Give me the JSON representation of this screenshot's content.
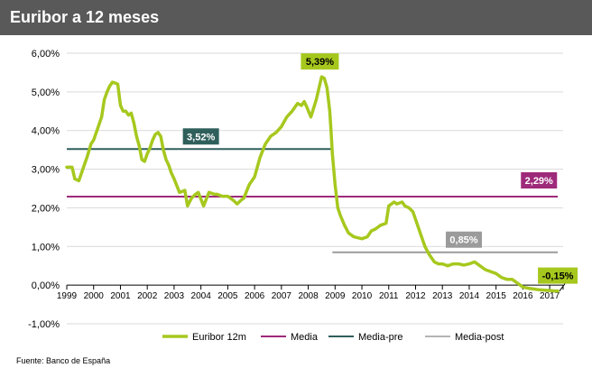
{
  "header": {
    "title": "Euribor a 12 meses"
  },
  "source": "Fuente: Banco de España",
  "colors": {
    "euribor": "#a6c81e",
    "media": "#9e2a7a",
    "media_pre": "#2f5f5b",
    "media_post": "#9b9b9b",
    "header_bg": "#595959"
  },
  "chart_data": {
    "type": "line",
    "title": "Euribor a 12 meses",
    "ylim": [
      -1.0,
      6.0
    ],
    "xlim": [
      1999.0,
      2017.5
    ],
    "y_ticks": [
      "6,00%",
      "5,00%",
      "4,00%",
      "3,00%",
      "2,00%",
      "1,00%",
      "0,00%",
      "-1,00%"
    ],
    "x_ticks": [
      "1999",
      "2000",
      "2001",
      "2002",
      "2003",
      "2004",
      "2005",
      "2006",
      "2007",
      "2008",
      "2009",
      "2010",
      "2011",
      "2012",
      "2013",
      "2014",
      "2015",
      "2016",
      "2017"
    ],
    "grid": "horizontal",
    "legend_position": "bottom",
    "legend": [
      "Euribor 12m",
      "Media",
      "Media-pre",
      "Media-post"
    ],
    "series": [
      {
        "name": "Euribor 12m",
        "x": [
          1999.0,
          1999.1,
          1999.2,
          1999.3,
          1999.45,
          1999.6,
          1999.75,
          1999.9,
          2000.0,
          2000.15,
          2000.3,
          2000.4,
          2000.5,
          2000.6,
          2000.7,
          2000.8,
          2000.9,
          2001.0,
          2001.1,
          2001.2,
          2001.3,
          2001.4,
          2001.5,
          2001.6,
          2001.7,
          2001.8,
          2001.9,
          2002.0,
          2002.1,
          2002.2,
          2002.3,
          2002.4,
          2002.5,
          2002.6,
          2002.7,
          2002.8,
          2002.9,
          2003.0,
          2003.2,
          2003.4,
          2003.5,
          2003.65,
          2003.8,
          2003.9,
          2004.1,
          2004.3,
          2004.5,
          2004.6,
          2004.8,
          2005.0,
          2005.2,
          2005.35,
          2005.5,
          2005.6,
          2005.8,
          2006.0,
          2006.2,
          2006.4,
          2006.6,
          2006.8,
          2007.0,
          2007.2,
          2007.4,
          2007.6,
          2007.75,
          2007.85,
          2007.95,
          2008.1,
          2008.3,
          2008.5,
          2008.6,
          2008.7,
          2008.8,
          2008.85,
          2008.9,
          2009.0,
          2009.1,
          2009.2,
          2009.35,
          2009.5,
          2009.7,
          2010.0,
          2010.2,
          2010.35,
          2010.5,
          2010.7,
          2010.9,
          2011.0,
          2011.2,
          2011.3,
          2011.5,
          2011.6,
          2011.75,
          2011.9,
          2012.0,
          2012.2,
          2012.35,
          2012.5,
          2012.7,
          2012.85,
          2013.0,
          2013.2,
          2013.4,
          2013.6,
          2013.8,
          2014.0,
          2014.2,
          2014.4,
          2014.6,
          2014.8,
          2015.0,
          2015.2,
          2015.4,
          2015.6,
          2015.8,
          2016.0,
          2016.2,
          2016.4,
          2016.6,
          2016.8,
          2017.0,
          2017.2,
          2017.3
        ],
        "y": [
          3.05,
          3.05,
          3.05,
          2.75,
          2.7,
          3.0,
          3.3,
          3.65,
          3.75,
          4.05,
          4.35,
          4.8,
          5.0,
          5.15,
          5.25,
          5.23,
          5.2,
          4.65,
          4.5,
          4.5,
          4.4,
          4.45,
          4.2,
          3.85,
          3.6,
          3.25,
          3.2,
          3.4,
          3.55,
          3.75,
          3.9,
          3.95,
          3.85,
          3.5,
          3.25,
          3.1,
          2.9,
          2.75,
          2.4,
          2.45,
          2.05,
          2.25,
          2.35,
          2.4,
          2.05,
          2.4,
          2.35,
          2.35,
          2.3,
          2.3,
          2.2,
          2.1,
          2.2,
          2.25,
          2.6,
          2.8,
          3.3,
          3.65,
          3.85,
          3.95,
          4.1,
          4.35,
          4.5,
          4.7,
          4.65,
          4.75,
          4.6,
          4.35,
          4.8,
          5.39,
          5.35,
          5.1,
          4.5,
          4.0,
          3.4,
          2.6,
          2.0,
          1.8,
          1.55,
          1.35,
          1.25,
          1.2,
          1.25,
          1.4,
          1.45,
          1.55,
          1.6,
          2.05,
          2.15,
          2.1,
          2.15,
          2.05,
          2.0,
          1.9,
          1.7,
          1.3,
          1.0,
          0.8,
          0.6,
          0.55,
          0.55,
          0.5,
          0.55,
          0.55,
          0.52,
          0.55,
          0.6,
          0.5,
          0.4,
          0.35,
          0.3,
          0.2,
          0.15,
          0.15,
          0.05,
          -0.05,
          -0.08,
          -0.1,
          -0.12,
          -0.13,
          -0.14,
          -0.15,
          -0.15
        ]
      },
      {
        "name": "Media",
        "x": [
          1999.0,
          2017.3
        ],
        "y": [
          2.29,
          2.29
        ],
        "label": "2,29%"
      },
      {
        "name": "Media-pre",
        "x": [
          1999.0,
          2008.9
        ],
        "y": [
          3.52,
          3.52
        ],
        "label": "3,52%"
      },
      {
        "name": "Media-post",
        "x": [
          2008.9,
          2017.3
        ],
        "y": [
          0.85,
          0.85
        ],
        "label": "0,85%"
      }
    ],
    "annotations": [
      {
        "text": "5,39%",
        "x": 2008.5,
        "y": 5.39
      },
      {
        "text": "3,52%",
        "x": 2004.0,
        "y": 3.52
      },
      {
        "text": "2,29%",
        "x": 2016.6,
        "y": 2.29
      },
      {
        "text": "0,85%",
        "x": 2013.8,
        "y": 0.85
      },
      {
        "text": "-0,15%",
        "x": 2017.3,
        "y": -0.15
      }
    ]
  }
}
